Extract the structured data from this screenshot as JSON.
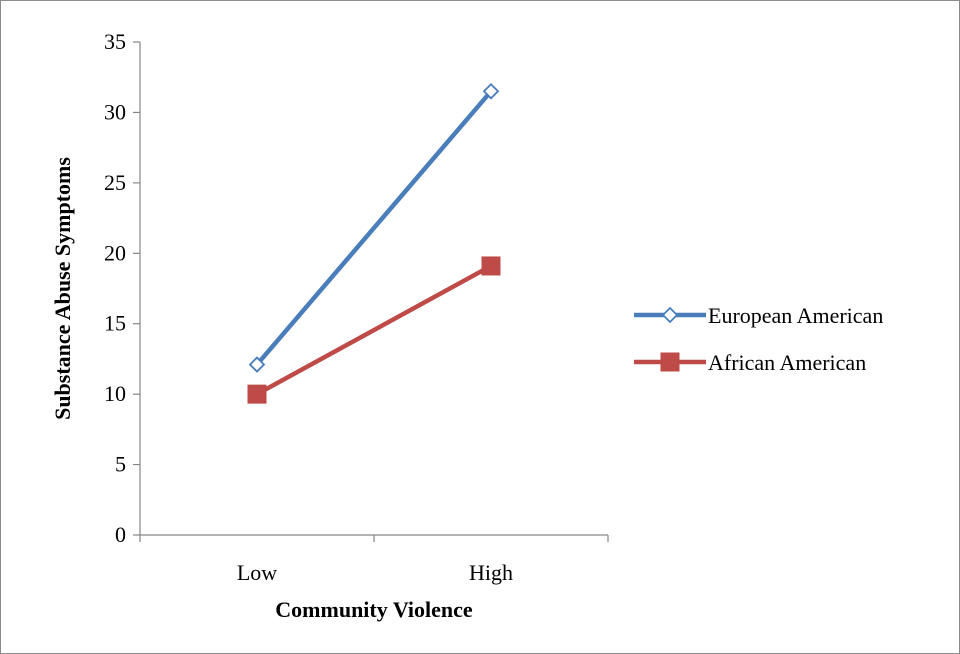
{
  "chart_data": {
    "type": "line",
    "title": "",
    "xlabel": "Community Violence",
    "ylabel": "Substance Abuse Symptoms",
    "categories": [
      "Low",
      "High"
    ],
    "ylim": [
      0,
      35
    ],
    "yticks": [
      0,
      5,
      10,
      15,
      20,
      25,
      30,
      35
    ],
    "grid": false,
    "legend_position": "right",
    "series": [
      {
        "name": "European American",
        "values": [
          12.1,
          31.5
        ],
        "color": "#4a7ebb",
        "marker": "diamond-open"
      },
      {
        "name": "African American",
        "values": [
          10.0,
          19.1
        ],
        "color": "#be4b48",
        "marker": "square-filled"
      }
    ]
  }
}
